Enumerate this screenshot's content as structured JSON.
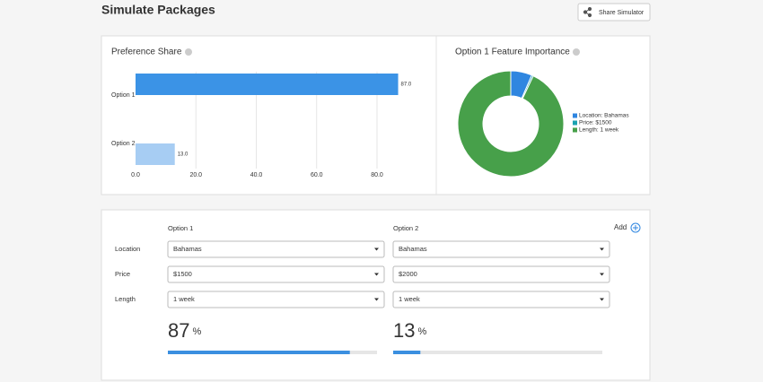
{
  "header": {
    "title": "Simulate Packages",
    "share_button": "Share Simulator"
  },
  "preference_chart": {
    "type": "bar",
    "title": "Preference Share",
    "categories": [
      "Option 1",
      "Option 2"
    ],
    "values": [
      87.0,
      13.0
    ],
    "value_labels": [
      "87.0",
      "13.0"
    ],
    "colors": [
      "#3b93e6",
      "#a7cdf3"
    ],
    "xlim": [
      0,
      95
    ],
    "xticks": [
      {
        "value": 0,
        "label": "0.0"
      },
      {
        "value": 20,
        "label": "20.0"
      },
      {
        "value": 40,
        "label": "40.0"
      },
      {
        "value": 60,
        "label": "60.0"
      },
      {
        "value": 80,
        "label": "80.0"
      }
    ],
    "grid": true
  },
  "importance_chart": {
    "type": "pie",
    "title": "Option 1 Feature Importance",
    "categories": [
      "Location: Bahamas",
      "Price: $1500",
      "Length: 1 week"
    ],
    "values": [
      6.5,
      0.5,
      93
    ],
    "colors": [
      "#2f86e0",
      "#1aa2b0",
      "#47a04a"
    ]
  },
  "form": {
    "columns": [
      "Option 1",
      "Option 2"
    ],
    "add": "Add",
    "rows": [
      {
        "label": "Location",
        "values": [
          "Bahamas",
          "Bahamas"
        ]
      },
      {
        "label": "Price",
        "values": [
          "$1500",
          "$2000"
        ]
      },
      {
        "label": "Length",
        "values": [
          "1 week",
          "1 week"
        ]
      }
    ]
  },
  "results": {
    "type": "bar",
    "values": [
      87,
      13
    ],
    "unit": "%",
    "xlim": [
      0,
      100
    ],
    "color": "#3b8fe0"
  }
}
